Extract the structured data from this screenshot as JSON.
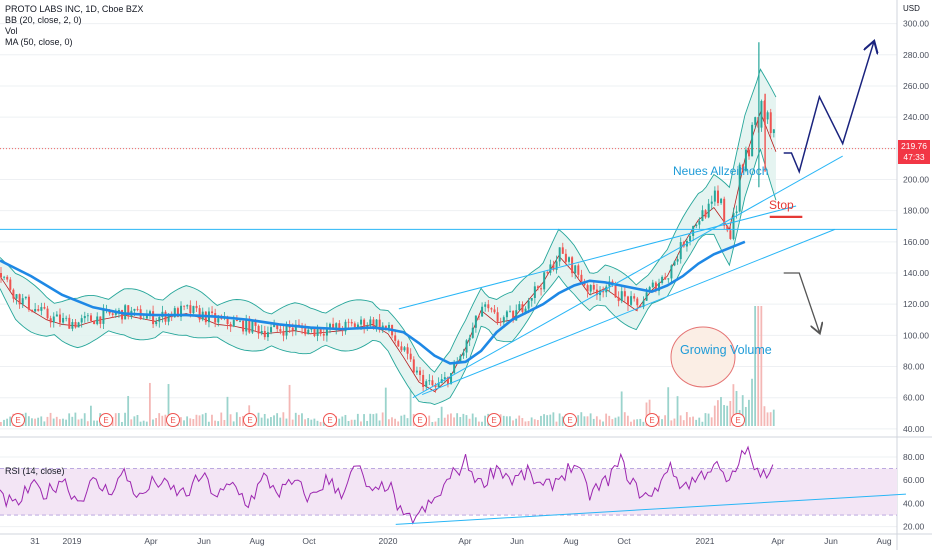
{
  "header": {
    "title": "PROTO LABS INC, 1D, Cboe BZX",
    "indicators": [
      "BB (20, close, 2, 0)",
      "Vol",
      "MA (50, close, 0)"
    ],
    "currency": "USD"
  },
  "rsi_label": "RSI (14, close)",
  "price_tag": {
    "value": "219.76",
    "countdown": "47:33"
  },
  "annotations": {
    "ath": "Neues Allzeithoch",
    "stop": "Stop",
    "volume": "Growing Volume"
  },
  "earnings_marker": "E",
  "colors": {
    "candle_up": "#26a69a",
    "candle_down": "#ef5350",
    "bb_fill": "#e0f2ef",
    "bb_line": "#26a69a",
    "ma50": "#1e88e5",
    "rsi_line": "#9c27b0",
    "rsi_band": "#f3e5f5",
    "channel": "#29b6f6",
    "projection": "#1a237e",
    "stop": "#e53935",
    "price_tag": "#f23645"
  },
  "chart_data": [
    {
      "type": "line",
      "title": "PROTO LABS INC, 1D, Cboe BZX",
      "ylabel": "USD",
      "ylim": [
        38,
        310
      ],
      "y_ticks": [
        40,
        60,
        80,
        100,
        120,
        140,
        160,
        180,
        200,
        220,
        240,
        260,
        280,
        300
      ],
      "x_ticks": [
        "31",
        "2019",
        "Apr",
        "Jun",
        "Aug",
        "Oct",
        "2020",
        "Apr",
        "Jun",
        "Aug",
        "Oct",
        "2021",
        "Apr",
        "Jun",
        "Aug"
      ],
      "series": [
        {
          "name": "close",
          "points": [
            [
              0,
              140
            ],
            [
              1,
              125
            ],
            [
              2,
              118
            ],
            [
              3,
              112
            ],
            [
              4,
              109
            ],
            [
              5,
              108
            ],
            [
              6,
              111
            ],
            [
              7,
              113
            ],
            [
              8,
              115
            ],
            [
              9,
              113
            ],
            [
              10,
              111
            ],
            [
              11,
              114
            ],
            [
              12,
              116
            ],
            [
              13,
              113
            ],
            [
              14,
              109
            ],
            [
              15,
              108
            ],
            [
              16,
              106
            ],
            [
              17,
              103
            ],
            [
              18,
              104
            ],
            [
              19,
              105
            ],
            [
              20,
              103
            ],
            [
              21,
              104
            ],
            [
              22,
              105
            ],
            [
              23,
              107
            ],
            [
              24,
              109
            ],
            [
              25,
              103
            ],
            [
              26,
              88
            ],
            [
              27,
              72
            ],
            [
              28,
              66
            ],
            [
              29,
              75
            ],
            [
              30,
              94
            ],
            [
              31,
              118
            ],
            [
              32,
              110
            ],
            [
              33,
              112
            ],
            [
              34,
              124
            ],
            [
              35,
              136
            ],
            [
              36,
              153
            ],
            [
              37,
              142
            ],
            [
              38,
              128
            ],
            [
              39,
              132
            ],
            [
              40,
              125
            ],
            [
              41,
              118
            ],
            [
              42,
              131
            ],
            [
              43,
              140
            ],
            [
              44,
              160
            ],
            [
              45,
              176
            ],
            [
              46,
              184
            ],
            [
              47,
              170
            ],
            [
              48,
              215
            ],
            [
              49,
              245
            ],
            [
              50,
              219.76
            ]
          ]
        },
        {
          "name": "MA (50, close, 0)",
          "points": [
            [
              0,
              148
            ],
            [
              2,
              138
            ],
            [
              4,
              126
            ],
            [
              6,
              118
            ],
            [
              8,
              114
            ],
            [
              10,
              113
            ],
            [
              12,
              113
            ],
            [
              14,
              112
            ],
            [
              16,
              110
            ],
            [
              18,
              107
            ],
            [
              20,
              105
            ],
            [
              22,
              104
            ],
            [
              24,
              105
            ],
            [
              25,
              104
            ],
            [
              26,
              102
            ],
            [
              27,
              95
            ],
            [
              28,
              87
            ],
            [
              29,
              82
            ],
            [
              30,
              83
            ],
            [
              31,
              90
            ],
            [
              32,
              102
            ],
            [
              33,
              110
            ],
            [
              34,
              115
            ],
            [
              35,
              120
            ],
            [
              36,
              127
            ],
            [
              37,
              132
            ],
            [
              38,
              135
            ],
            [
              39,
              134
            ],
            [
              40,
              132
            ],
            [
              41,
              130
            ],
            [
              42,
              128
            ],
            [
              43,
              132
            ],
            [
              44,
              138
            ],
            [
              45,
              146
            ],
            [
              46,
              152
            ],
            [
              47,
              156
            ],
            [
              48,
              160
            ]
          ]
        }
      ],
      "levels": [
        {
          "name": "horizontal",
          "value": 168
        },
        {
          "name": "last",
          "value": 219.76
        }
      ],
      "projection": [
        [
          50.5,
          217
        ],
        [
          51,
          217
        ],
        [
          51.5,
          205
        ],
        [
          52.8,
          253
        ],
        [
          54.3,
          223
        ],
        [
          56.3,
          288
        ]
      ],
      "down_projection": [
        [
          50.5,
          140
        ],
        [
          51.5,
          140
        ],
        [
          52.8,
          102
        ]
      ]
    },
    {
      "type": "line",
      "title": "RSI (14, close)",
      "ylim": [
        18,
        92
      ],
      "y_ticks": [
        20,
        40,
        60,
        80
      ],
      "bands": [
        30,
        70
      ],
      "series": [
        {
          "name": "RSI",
          "points": [
            [
              0,
              45
            ],
            [
              1,
              38
            ],
            [
              2,
              55
            ],
            [
              3,
              48
            ],
            [
              4,
              62
            ],
            [
              5,
              42
            ],
            [
              6,
              58
            ],
            [
              7,
              50
            ],
            [
              8,
              66
            ],
            [
              9,
              44
            ],
            [
              10,
              60
            ],
            [
              11,
              52
            ],
            [
              12,
              48
            ],
            [
              13,
              64
            ],
            [
              14,
              46
            ],
            [
              15,
              56
            ],
            [
              16,
              40
            ],
            [
              17,
              62
            ],
            [
              18,
              50
            ],
            [
              19,
              58
            ],
            [
              20,
              44
            ],
            [
              21,
              60
            ],
            [
              22,
              50
            ],
            [
              23,
              72
            ],
            [
              24,
              46
            ],
            [
              25,
              58
            ],
            [
              26,
              25
            ],
            [
              27,
              30
            ],
            [
              28,
              42
            ],
            [
              29,
              62
            ],
            [
              30,
              76
            ],
            [
              31,
              56
            ],
            [
              32,
              72
            ],
            [
              33,
              60
            ],
            [
              34,
              66
            ],
            [
              35,
              52
            ],
            [
              36,
              62
            ],
            [
              37,
              74
            ],
            [
              38,
              48
            ],
            [
              39,
              58
            ],
            [
              40,
              76
            ],
            [
              41,
              52
            ],
            [
              42,
              44
            ],
            [
              43,
              72
            ],
            [
              44,
              55
            ],
            [
              45,
              62
            ],
            [
              46,
              74
            ],
            [
              47,
              56
            ],
            [
              48,
              88
            ],
            [
              49,
              60
            ],
            [
              50,
              80
            ]
          ]
        }
      ],
      "trendline": [
        [
          25.5,
          22
        ],
        [
          50,
          44
        ]
      ]
    }
  ]
}
